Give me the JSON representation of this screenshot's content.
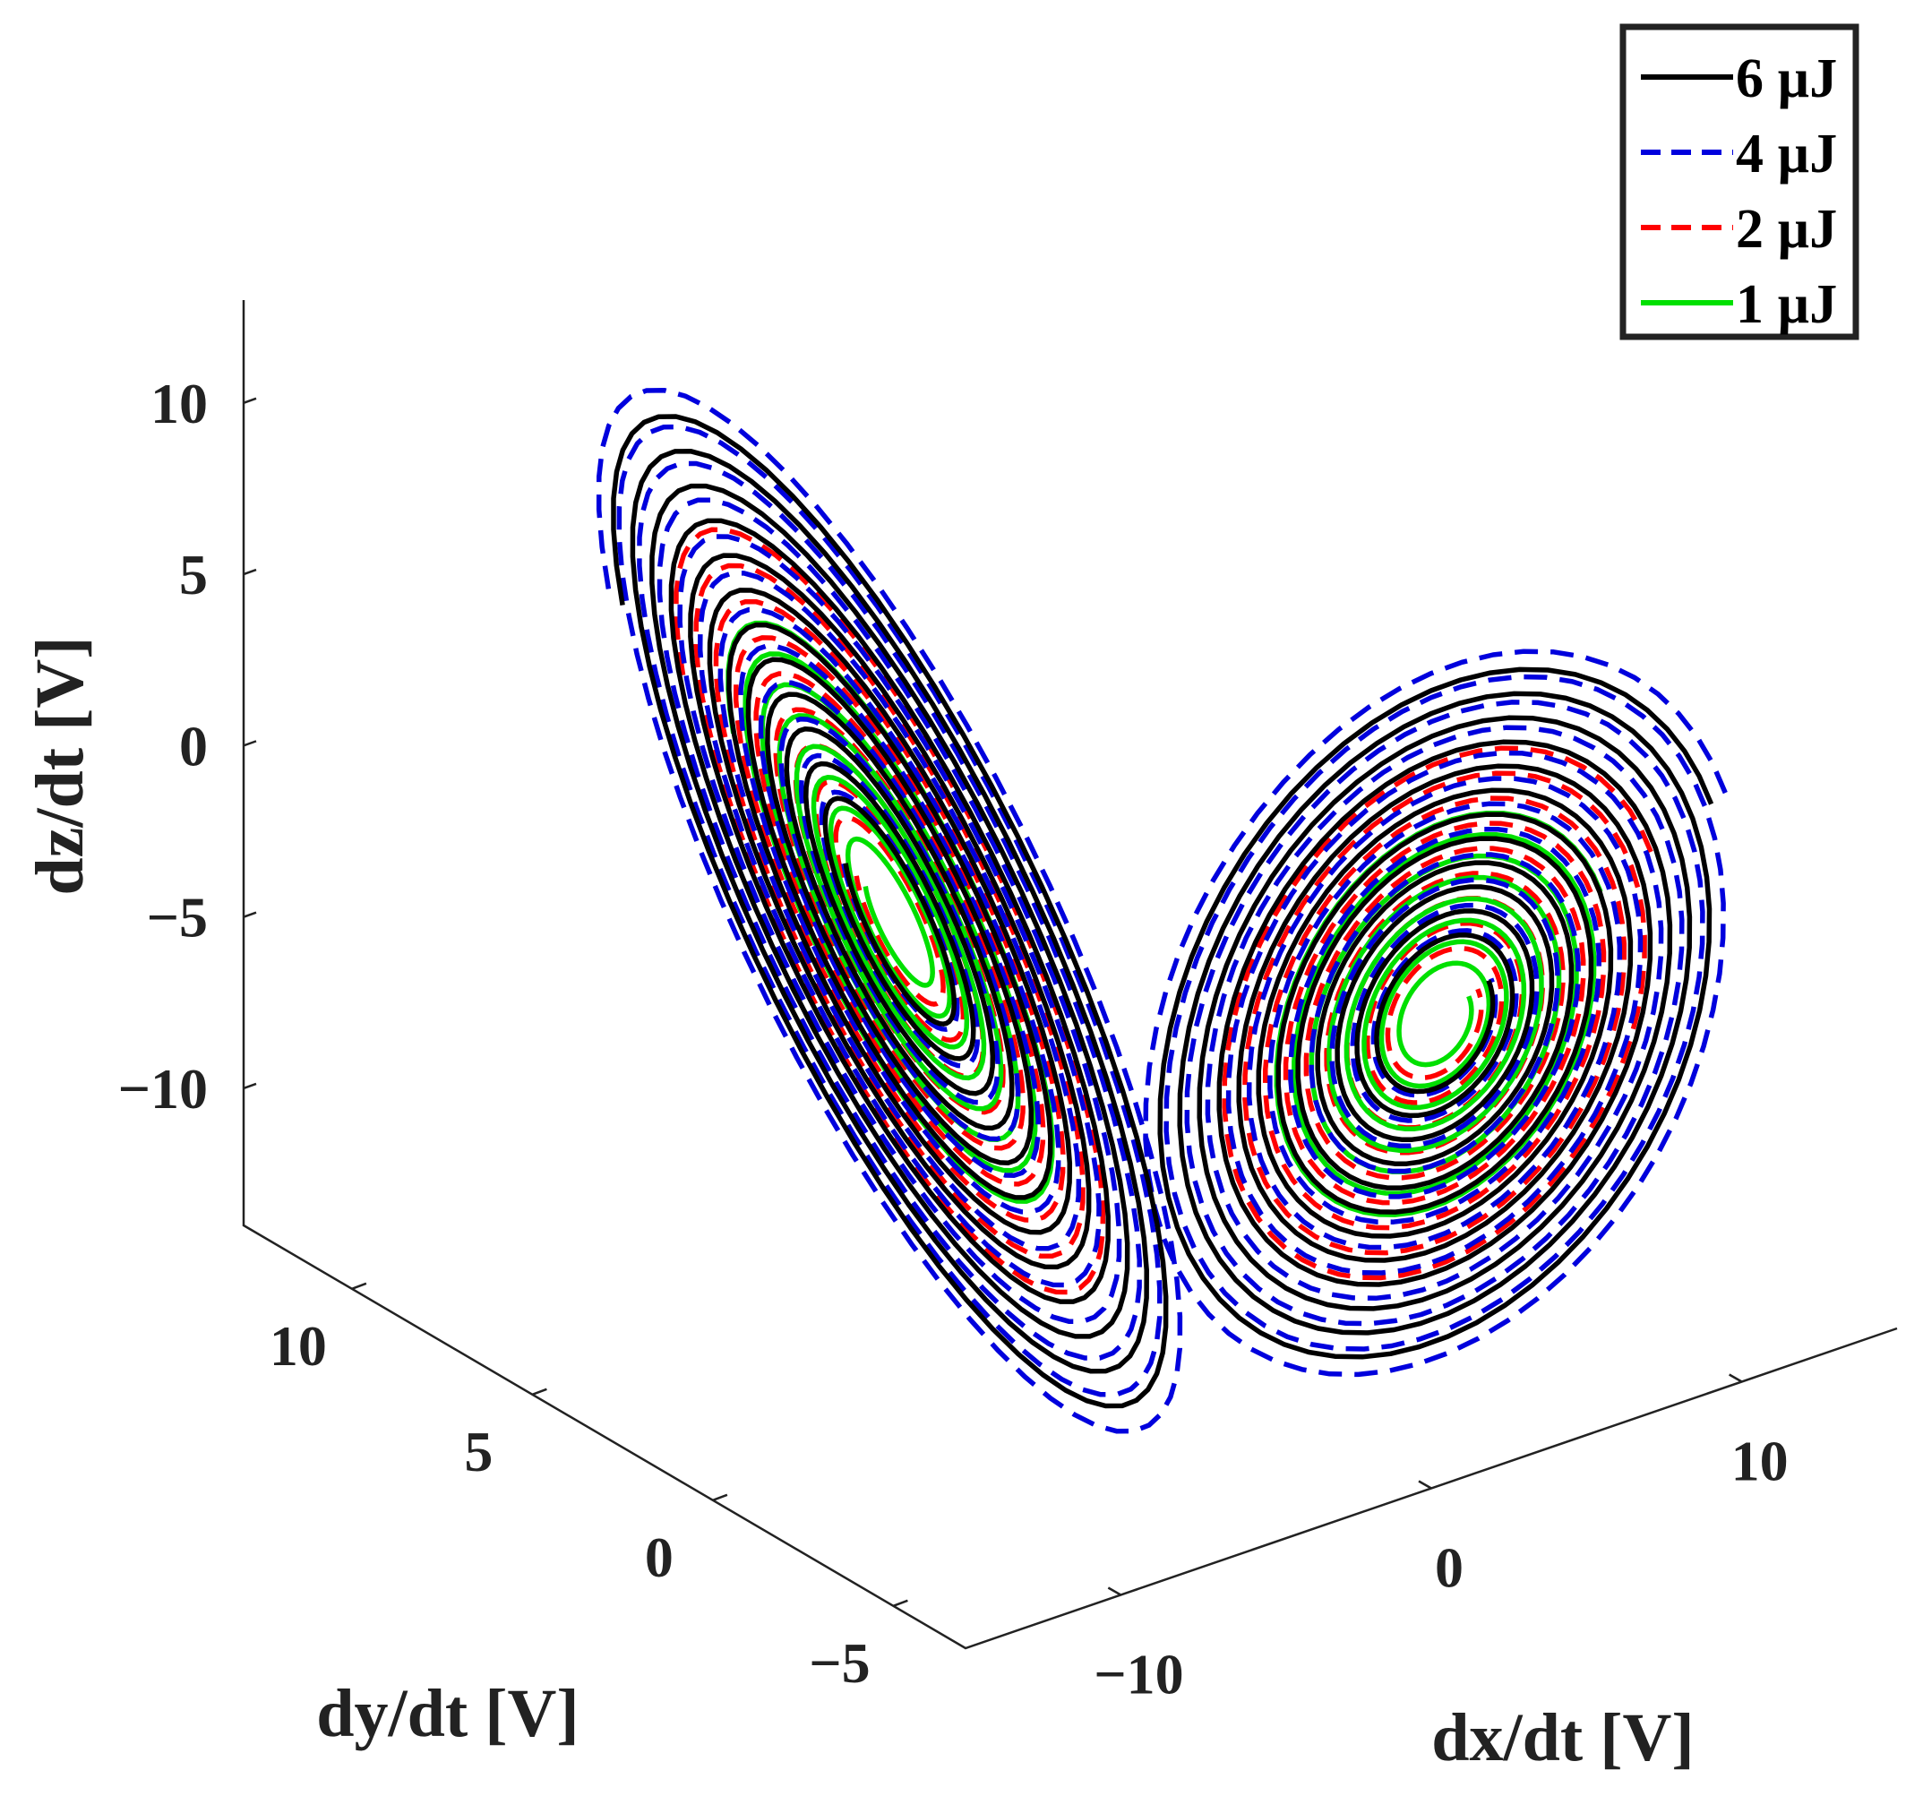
{
  "chart_data": {
    "type": "line3d",
    "xlabel": "dx/dt [V]",
    "ylabel": "dy/dt [V]",
    "zlabel": "dz/dt [V]",
    "xlim": [
      -15,
      15
    ],
    "ylim": [
      -7,
      13
    ],
    "zlim": [
      -14,
      13
    ],
    "xticks": [
      {
        "value": -10,
        "label": "−10"
      },
      {
        "value": 0,
        "label": "0"
      },
      {
        "value": 10,
        "label": "10"
      }
    ],
    "yticks": [
      {
        "value": -5,
        "label": "−5"
      },
      {
        "value": 0,
        "label": "0"
      },
      {
        "value": 5,
        "label": "5"
      },
      {
        "value": 10,
        "label": "10"
      }
    ],
    "zticks": [
      {
        "value": -10,
        "label": "−10"
      },
      {
        "value": -5,
        "label": "−5"
      },
      {
        "value": 0,
        "label": "0"
      },
      {
        "value": 5,
        "label": "5"
      },
      {
        "value": 10,
        "label": "10"
      }
    ],
    "legend_position": "top-right",
    "series": [
      {
        "name": "6 µJ",
        "color": "#000000",
        "style": "solid",
        "lobe_amplitude": 13.5,
        "loops": 12
      },
      {
        "name": "4 µJ",
        "color": "#0000dd",
        "style": "dashed",
        "lobe_amplitude": 14.2,
        "loops": 12
      },
      {
        "name": "2 µJ",
        "color": "#ff0000",
        "style": "dashed",
        "lobe_amplitude": 10.5,
        "loops": 9
      },
      {
        "name": "1 µJ",
        "color": "#00e000",
        "style": "solid",
        "lobe_amplitude": 8.0,
        "loops": 8
      }
    ]
  }
}
